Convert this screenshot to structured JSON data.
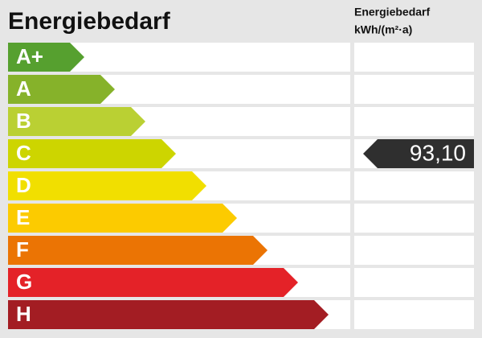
{
  "title": "Energiebedarf",
  "column_header": [
    "Energiebedarf",
    "kWh/(m²·a)"
  ],
  "classes": [
    {
      "label": "A+",
      "color": "#56a02f"
    },
    {
      "label": "A",
      "color": "#86b22a"
    },
    {
      "label": "B",
      "color": "#bad033"
    },
    {
      "label": "C",
      "color": "#cdd500",
      "value": "93,10"
    },
    {
      "label": "D",
      "color": "#f1df00"
    },
    {
      "label": "E",
      "color": "#fccb00"
    },
    {
      "label": "F",
      "color": "#eb7404"
    },
    {
      "label": "G",
      "color": "#e42228"
    },
    {
      "label": "H",
      "color": "#a31d23"
    }
  ]
}
